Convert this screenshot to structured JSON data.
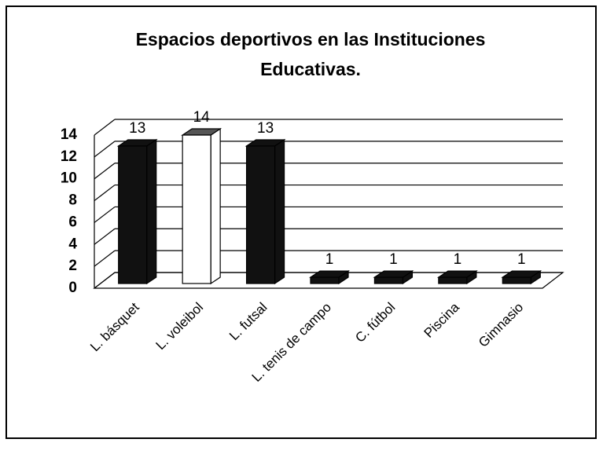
{
  "chart_data": {
    "type": "bar3d",
    "title": [
      "Espacios deportivos en las Instituciones",
      "Educativas."
    ],
    "categories": [
      "L. básquet",
      "L. voleibol",
      "L. futsal",
      "L. tenis de campo",
      "C. fútbol",
      "Piscina",
      "Gimnasio"
    ],
    "values": [
      13,
      14,
      13,
      1,
      1,
      1,
      1
    ],
    "colors": [
      "#111111",
      "#ffffff",
      "#111111",
      "#111111",
      "#111111",
      "#111111",
      "#111111"
    ],
    "ylim": [
      0,
      14
    ],
    "yticks": [
      0,
      2,
      4,
      6,
      8,
      10,
      12,
      14
    ],
    "grid": true
  }
}
